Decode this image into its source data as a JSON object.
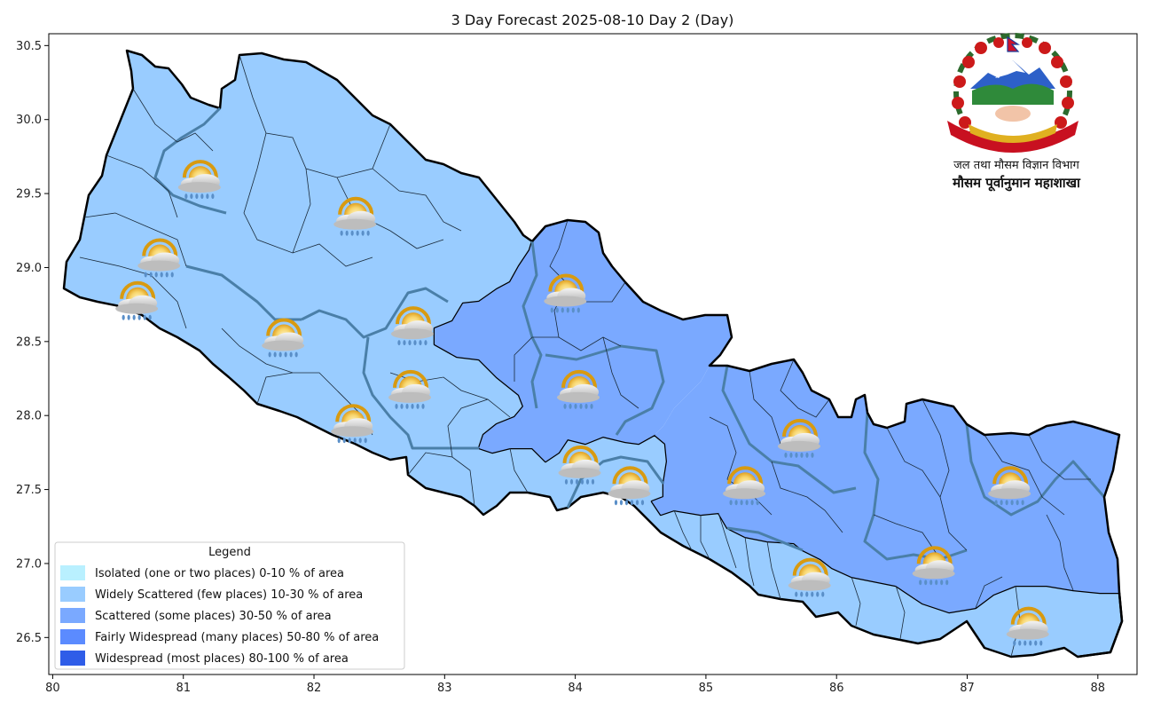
{
  "title": "3 Day Forecast 2025-08-10 Day 2 (Day)",
  "logo": {
    "line1": "जल तथा मौसम विज्ञान विभाग",
    "line2": "मौसम पूर्वानुमान महाशाखा",
    "seal_text": "जननी जन्मभूमिश्च स्वर्गादपि गरीयसी"
  },
  "axes": {
    "x_ticks": [
      "80",
      "81",
      "82",
      "83",
      "84",
      "85",
      "86",
      "87",
      "88"
    ],
    "y_ticks": [
      "30.5",
      "30.0",
      "29.5",
      "29.0",
      "28.5",
      "28.0",
      "27.5",
      "27.0",
      "26.5"
    ],
    "xlim": [
      79.97,
      88.3
    ],
    "ylim": [
      26.25,
      30.58
    ]
  },
  "legend": {
    "title": "Legend",
    "items": [
      {
        "label": "Isolated (one or two places)  0-10 % of area",
        "color": "#b9f0ff"
      },
      {
        "label": "Widely Scattered (few places) 10-30 % of area",
        "color": "#99ccff"
      },
      {
        "label": "Scattered (some places) 30-50  % of area",
        "color": "#7aa9ff"
      },
      {
        "label": "Fairly Widespread (many places) 50-80 % of area",
        "color": "#5b8bff"
      },
      {
        "label": "Widespread (most places) 80-100 % of area",
        "color": "#2f5de8"
      }
    ]
  },
  "map_colors": {
    "widely_scattered": "#99ccff",
    "scattered": "#7aa9ff",
    "outline": "#000000",
    "province_border": "#4a7fa8"
  },
  "weather_icons": [
    {
      "icon": "partly-cloudy-rain-icon",
      "lon": 81.13,
      "lat": 29.62
    },
    {
      "icon": "partly-cloudy-rain-icon",
      "lon": 82.32,
      "lat": 29.37
    },
    {
      "icon": "partly-cloudy-rain-icon",
      "lon": 80.82,
      "lat": 29.09
    },
    {
      "icon": "partly-cloudy-rain-icon",
      "lon": 80.65,
      "lat": 28.8
    },
    {
      "icon": "partly-cloudy-rain-icon",
      "lon": 81.77,
      "lat": 28.55
    },
    {
      "icon": "partly-cloudy-rain-icon",
      "lon": 82.76,
      "lat": 28.63
    },
    {
      "icon": "partly-cloudy-rain-icon",
      "lon": 82.74,
      "lat": 28.2
    },
    {
      "icon": "partly-cloudy-rain-icon",
      "lon": 82.3,
      "lat": 27.97
    },
    {
      "icon": "partly-cloudy-rain-icon",
      "lon": 83.93,
      "lat": 28.85
    },
    {
      "icon": "partly-cloudy-rain-icon",
      "lon": 84.03,
      "lat": 28.2
    },
    {
      "icon": "partly-cloudy-rain-icon",
      "lon": 84.04,
      "lat": 27.69
    },
    {
      "icon": "partly-cloudy-rain-icon",
      "lon": 84.42,
      "lat": 27.55
    },
    {
      "icon": "partly-cloudy-rain-icon",
      "lon": 85.3,
      "lat": 27.55
    },
    {
      "icon": "partly-cloudy-rain-icon",
      "lon": 85.72,
      "lat": 27.87
    },
    {
      "icon": "partly-cloudy-rain-icon",
      "lon": 87.33,
      "lat": 27.55
    },
    {
      "icon": "partly-cloudy-rain-icon",
      "lon": 85.8,
      "lat": 26.93
    },
    {
      "icon": "partly-cloudy-rain-icon",
      "lon": 86.75,
      "lat": 27.01
    },
    {
      "icon": "partly-cloudy-rain-icon",
      "lon": 87.47,
      "lat": 26.6
    }
  ]
}
